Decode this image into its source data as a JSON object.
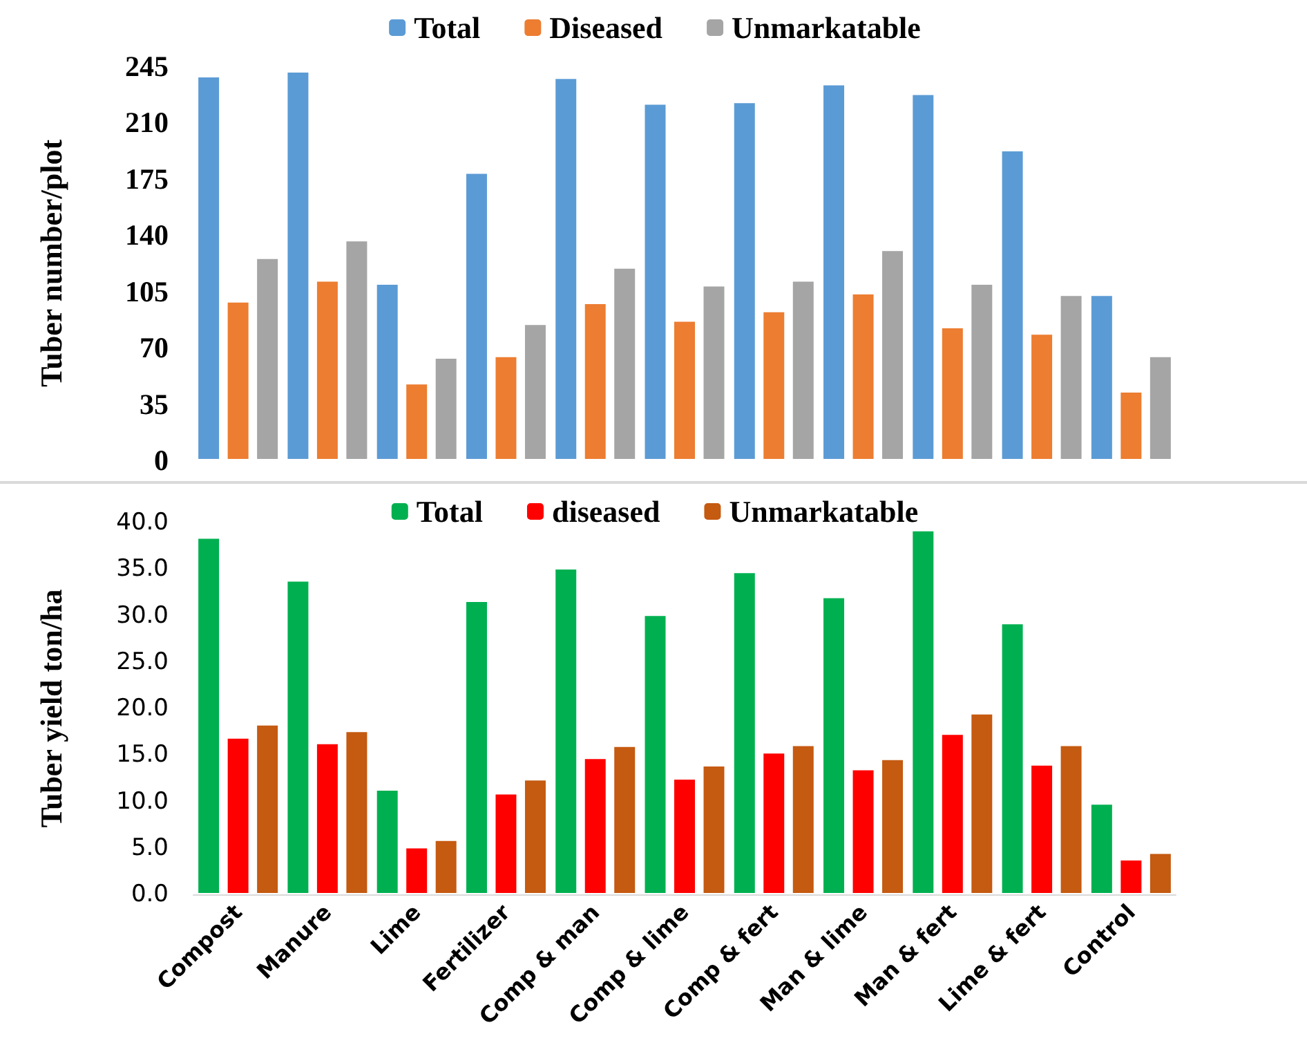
{
  "chart_data": [
    {
      "type": "bar",
      "ylabel": "Tuber number/plot",
      "categories": [
        null,
        null,
        null,
        null,
        null,
        null,
        null,
        null,
        null,
        null,
        null
      ],
      "series": [
        {
          "name": "Total",
          "color": "#5b9bd5",
          "values": [
            239,
            242,
            110,
            179,
            238,
            222,
            223,
            234,
            228,
            193,
            103
          ]
        },
        {
          "name": "Diseased",
          "color": "#ed7d31",
          "values": [
            99,
            112,
            48,
            65,
            98,
            87,
            93,
            104,
            83,
            79,
            43
          ]
        },
        {
          "name": "Unmarkatable",
          "color": "#a5a5a5",
          "values": [
            126,
            137,
            64,
            85,
            120,
            109,
            112,
            131,
            110,
            103,
            65
          ]
        }
      ],
      "ylim": [
        0,
        245
      ],
      "yticks": [
        0,
        35,
        70,
        105,
        140,
        175,
        210,
        245
      ],
      "tick_labels": "y",
      "grid": false,
      "legend": "top"
    },
    {
      "type": "bar",
      "ylabel": "Tuber yield ton/ha",
      "categories": [
        "Compost",
        "Manure",
        "Lime",
        "Fertilizer",
        "Comp & man",
        "Comp & lime",
        "Comp & fert",
        "Man & lime",
        "Man & fert",
        "Lime & fert",
        "Control"
      ],
      "series": [
        {
          "name": "Total",
          "color": "#00b050",
          "values": [
            38.4,
            33.8,
            11.3,
            31.6,
            35.1,
            30.1,
            34.7,
            32.0,
            39.2,
            29.2,
            9.8
          ]
        },
        {
          "name": "diseased",
          "color": "#ff0000",
          "values": [
            16.9,
            16.3,
            5.1,
            10.9,
            14.7,
            12.5,
            15.3,
            13.5,
            17.3,
            14.0,
            3.8
          ]
        },
        {
          "name": "Unmarkatable",
          "color": "#c55a11",
          "values": [
            18.3,
            17.6,
            5.9,
            12.4,
            16.0,
            13.9,
            16.1,
            14.6,
            19.5,
            16.1,
            4.5
          ]
        }
      ],
      "ylim": [
        0,
        40
      ],
      "yticks": [
        {
          "value": 0,
          "label": "0.0"
        },
        {
          "value": 5,
          "label": "5.0"
        },
        {
          "value": 10,
          "label": "10.0"
        },
        {
          "value": 15,
          "label": "15.0"
        },
        {
          "value": 20,
          "label": "20.0"
        },
        {
          "value": 25,
          "label": "25.0"
        },
        {
          "value": 30,
          "label": "30.0"
        },
        {
          "value": 35,
          "label": "35.0"
        },
        {
          "value": 40,
          "label": "40.0"
        }
      ],
      "grid": false,
      "legend": "top"
    }
  ]
}
